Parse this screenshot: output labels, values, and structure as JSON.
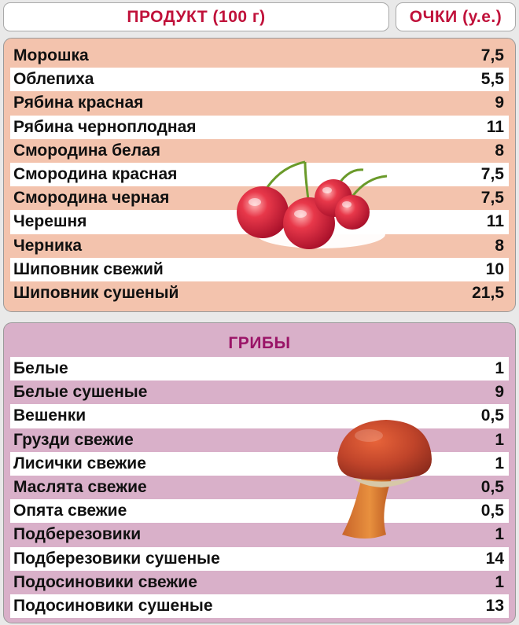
{
  "header": {
    "product_label": "ПРОДУКТ (100 г)",
    "points_label": "ОЧКИ (у.е.)"
  },
  "berries": {
    "rows": [
      {
        "name": "Морошка",
        "value": "7,5"
      },
      {
        "name": "Облепиха",
        "value": "5,5"
      },
      {
        "name": "Рябина красная",
        "value": "9"
      },
      {
        "name": "Рябина черноплодная",
        "value": "11"
      },
      {
        "name": "Смородина белая",
        "value": "8"
      },
      {
        "name": "Смородина красная",
        "value": "7,5"
      },
      {
        "name": "Смородина черная",
        "value": "7,5"
      },
      {
        "name": "Черешня",
        "value": "11"
      },
      {
        "name": "Черника",
        "value": "8"
      },
      {
        "name": "Шиповник свежий",
        "value": "10"
      },
      {
        "name": "Шиповник сушеный",
        "value": "21,5"
      }
    ]
  },
  "mushrooms": {
    "title": "ГРИБЫ",
    "rows": [
      {
        "name": "Белые",
        "value": "1"
      },
      {
        "name": "Белые сушеные",
        "value": "9"
      },
      {
        "name": "Вешенки",
        "value": "0,5"
      },
      {
        "name": "Грузди свежие",
        "value": "1"
      },
      {
        "name": "Лисички свежие",
        "value": "1"
      },
      {
        "name": "Маслята свежие",
        "value": "0,5"
      },
      {
        "name": "Опята свежие",
        "value": "0,5"
      },
      {
        "name": "Подберезовики",
        "value": "1"
      },
      {
        "name": "Подберезовики сушеные",
        "value": "14"
      },
      {
        "name": "Подосиновики свежие",
        "value": "1"
      },
      {
        "name": "Подосиновики сушеные",
        "value": "13"
      }
    ]
  },
  "colors": {
    "header_text": "#c0113a",
    "berries_band": "#f3c3ad",
    "mushrooms_band": "#d9b0c9",
    "mushrooms_title": "#9a1467"
  },
  "icons": [
    "cherries-icon",
    "mushroom-icon"
  ]
}
